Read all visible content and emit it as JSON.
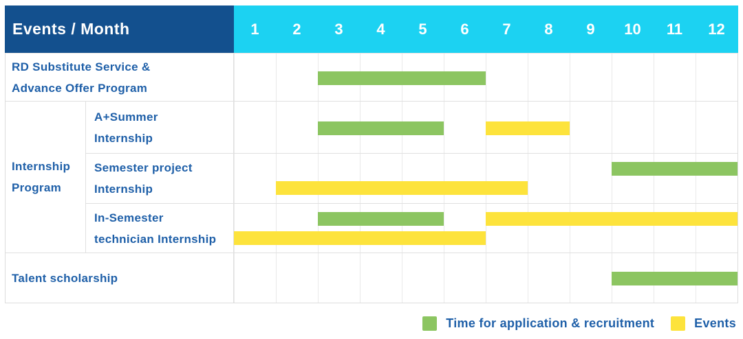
{
  "header": {
    "title": "Events / Month",
    "months": [
      "1",
      "2",
      "3",
      "4",
      "5",
      "6",
      "7",
      "8",
      "9",
      "10",
      "11",
      "12"
    ]
  },
  "labels": {
    "rd_substitute": "RD Substitute Service &\nAdvance Offer Program",
    "internship_group": "Internship\nProgram",
    "a_plus_summer": "A+Summer\nInternship",
    "semester_project": "Semester project\nInternship",
    "in_semester_technician": "In-Semester\ntechnician Internship",
    "talent_scholarship": "Talent scholarship"
  },
  "bars": [
    {
      "row": 0,
      "lane": "center",
      "start_month": 3,
      "end_month": 6,
      "type": "recruitment"
    },
    {
      "row": 1,
      "lane": "center",
      "start_month": 3,
      "end_month": 5,
      "type": "recruitment"
    },
    {
      "row": 1,
      "lane": "center",
      "start_month": 7,
      "end_month": 8,
      "type": "event"
    },
    {
      "row": 2,
      "lane": "upper",
      "start_month": 10,
      "end_month": 12,
      "type": "recruitment"
    },
    {
      "row": 2,
      "lane": "lower",
      "start_month": 2,
      "end_month": 7,
      "type": "event"
    },
    {
      "row": 3,
      "lane": "upper",
      "start_month": 3,
      "end_month": 5,
      "type": "recruitment"
    },
    {
      "row": 3,
      "lane": "upper",
      "start_month": 7,
      "end_month": 12,
      "type": "event"
    },
    {
      "row": 3,
      "lane": "lower",
      "start_month": 1,
      "end_month": 6,
      "type": "event"
    },
    {
      "row": 4,
      "lane": "center",
      "start_month": 10,
      "end_month": 12,
      "type": "recruitment"
    }
  ],
  "legend": [
    {
      "type": "recruitment",
      "label": "Time for application & recruitment"
    },
    {
      "type": "event",
      "label": "Events"
    }
  ],
  "colors": {
    "header_navy": "#13508e",
    "header_cyan": "#1cd2f2",
    "recruitment_green": "#8cc561",
    "event_yellow": "#fde33c",
    "label_blue": "#1e5fa8"
  },
  "chart_data": {
    "type": "bar",
    "subtype": "gantt-timeline",
    "title": "Events / Month",
    "x_ticks": [
      1,
      2,
      3,
      4,
      5,
      6,
      7,
      8,
      9,
      10,
      11,
      12
    ],
    "x_range": [
      1,
      12
    ],
    "grid": true,
    "legend_position": "bottom-right",
    "row_groups": [
      {
        "group": null,
        "rows": [
          "RD Substitute Service & Advance Offer Program"
        ]
      },
      {
        "group": "Internship Program",
        "rows": [
          "A+Summer Internship",
          "Semester project Internship",
          "In-Semester technician Internship"
        ]
      },
      {
        "group": null,
        "rows": [
          "Talent scholarship"
        ]
      }
    ],
    "series": [
      {
        "name": "Time for application & recruitment",
        "color": "#8cc561",
        "spans": [
          {
            "row": "RD Substitute Service & Advance Offer Program",
            "months": [
              3,
              6
            ]
          },
          {
            "row": "A+Summer Internship",
            "months": [
              3,
              5
            ]
          },
          {
            "row": "Semester project Internship",
            "months": [
              10,
              12
            ]
          },
          {
            "row": "In-Semester technician Internship",
            "months": [
              3,
              5
            ]
          },
          {
            "row": "Talent scholarship",
            "months": [
              10,
              12
            ]
          }
        ]
      },
      {
        "name": "Events",
        "color": "#fde33c",
        "spans": [
          {
            "row": "A+Summer Internship",
            "months": [
              7,
              8
            ]
          },
          {
            "row": "Semester project Internship",
            "months": [
              2,
              7
            ]
          },
          {
            "row": "In-Semester technician Internship",
            "months": [
              1,
              6
            ]
          },
          {
            "row": "In-Semester technician Internship",
            "months": [
              7,
              12
            ]
          }
        ]
      }
    ]
  }
}
